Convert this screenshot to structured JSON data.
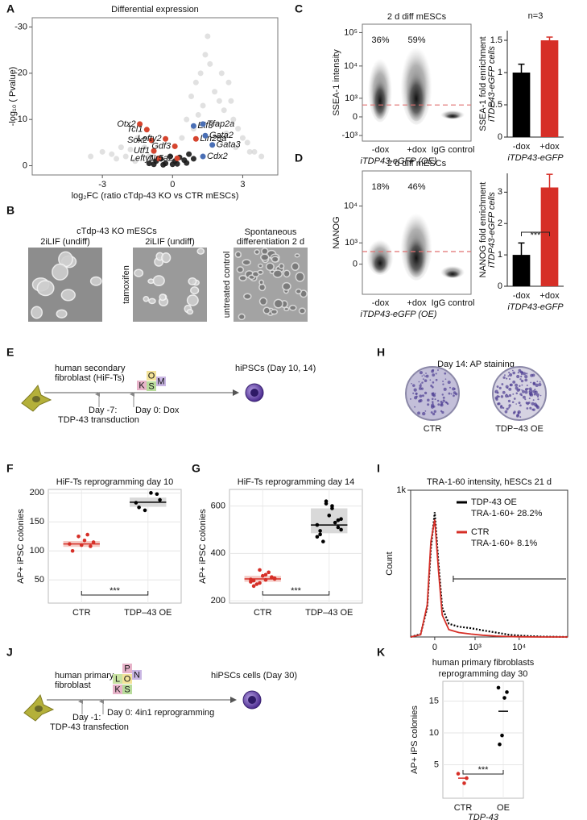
{
  "panel_labels": [
    "A",
    "B",
    "C",
    "D",
    "E",
    "F",
    "G",
    "H",
    "I",
    "J",
    "K"
  ],
  "chart_data": [
    {
      "type": "volcano",
      "title": "Differential expression",
      "y_label": "-log₁₀ ( Pvalue)",
      "x_label": "log₂FC (ratio cTdp-43 KO vs CTR mESCs)",
      "xlim": [
        -6,
        4.5
      ],
      "ylim": [
        2,
        -32
      ],
      "xticks": [
        -3,
        0,
        3
      ],
      "yticks": [
        -30,
        -20,
        -10,
        0
      ],
      "series": [
        {
          "color": "#c4c4c4",
          "x": [
            -3.5,
            -3,
            -2.6,
            -2.2,
            -2,
            -1.8,
            -1.5,
            -1.2,
            -1,
            -0.8,
            -0.5,
            0.4,
            0.6,
            0.8,
            1,
            1.2,
            1.4,
            1.6,
            1.8,
            2,
            2.2,
            2.4,
            2.6,
            2.8,
            3,
            3.2,
            3.5,
            3.8,
            1.5,
            2.1,
            2.5,
            1.1,
            0.9,
            2.7,
            3.3,
            -2.4,
            -1.6,
            1.3,
            1.9,
            2.3
          ],
          "y": [
            -2,
            -3,
            -2.5,
            -4,
            -2,
            -3.5,
            -6,
            -4,
            -2,
            -3,
            -1.5,
            -6,
            -10,
            -15,
            -18,
            -20,
            -24,
            -22,
            -16,
            -14,
            -12,
            -18,
            -10,
            -8,
            -6,
            -5,
            -3,
            -2,
            -28,
            -20,
            -14,
            -11,
            -8,
            -4,
            -3,
            -1.5,
            -1,
            -13,
            -9,
            -7
          ]
        },
        {
          "color": "#1a1a1a",
          "x": [
            -1,
            -0.7,
            -0.5,
            -0.3,
            -0.1,
            0,
            0.1,
            0.3,
            0.5,
            0.7,
            0.9,
            -0.4,
            0.2,
            0.6,
            -0.8
          ],
          "y": [
            -0.5,
            -1,
            -1.5,
            -0.5,
            -2,
            -0.3,
            -1,
            -1.8,
            -1.2,
            -2.5,
            -1.5,
            -0.2,
            -0.4,
            -0.6,
            -0.3
          ]
        }
      ],
      "genes": [
        {
          "label": "Otx2",
          "x": -1.4,
          "y": -9,
          "color": "#d6452f"
        },
        {
          "label": "Tcl1",
          "x": -1.1,
          "y": -7.8,
          "color": "#d6452f"
        },
        {
          "label": "Sox2",
          "x": -0.9,
          "y": -5.5,
          "color": "#d6452f"
        },
        {
          "label": "Lefty2",
          "x": -0.3,
          "y": -5.8,
          "color": "#d6452f"
        },
        {
          "label": "Utf1",
          "x": -0.8,
          "y": -3.2,
          "color": "#d6452f"
        },
        {
          "label": "Gdf3",
          "x": 0.1,
          "y": -4.2,
          "color": "#d6452f"
        },
        {
          "label": "Lefty1",
          "x": -0.6,
          "y": -1.6,
          "color": "#d6452f"
        },
        {
          "label": "Nr5a2",
          "x": 0.2,
          "y": -1.6,
          "color": "#d6452f"
        },
        {
          "label": "Lin28a",
          "x": 1.0,
          "y": -5.8,
          "color": "#d6452f"
        },
        {
          "label": "Elf3",
          "x": 0.9,
          "y": -8.6,
          "color": "#4a6fb5"
        },
        {
          "label": "Tfap2a",
          "x": 1.3,
          "y": -9,
          "color": "#4a6fb5"
        },
        {
          "label": "Gata2",
          "x": 1.4,
          "y": -6.5,
          "color": "#4a6fb5"
        },
        {
          "label": "Gata3",
          "x": 1.7,
          "y": -4.5,
          "color": "#4a6fb5"
        },
        {
          "label": "Cdx2",
          "x": 1.3,
          "y": -2,
          "color": "#4a6fb5"
        }
      ]
    },
    {
      "type": "flow_density",
      "title": "2 d diff mESCs",
      "y_label": "SSEA-1 intensity",
      "x_label": "iTDP43-eGFP (OE)",
      "categories": [
        "-dox",
        "+dox",
        "IgG control"
      ],
      "annotations": [
        "36%",
        "59%"
      ],
      "yscale": "asinh",
      "asinh_cofactor": 600,
      "ylim": [
        -1536,
        178800
      ],
      "yticks": [
        {
          "value": 100000,
          "label": "10⁵"
        },
        {
          "value": 10000,
          "label": "10⁴"
        },
        {
          "value": 1000,
          "label": "10³"
        },
        0,
        {
          "value": -1000,
          "label": "-10³"
        }
      ],
      "threshold": 550,
      "threshold_color": "#e07070"
    },
    {
      "type": "bar",
      "title": "n=3",
      "y_label": [
        "SSEA-1 fold enrichment",
        "iTDP43-eGFP cells"
      ],
      "x_label": "iTDP43-eGFP",
      "categories": [
        "-dox",
        "+dox"
      ],
      "values": [
        1.0,
        1.5
      ],
      "errors": [
        0.13,
        0.05
      ],
      "colors": [
        "#000000",
        "#d62f27"
      ],
      "ylim": [
        0,
        1.65
      ],
      "yticks": [
        0,
        0.5,
        1,
        1.5
      ]
    },
    {
      "type": "flow_density",
      "title": "2 d diff mESCs",
      "y_label": "NANOG",
      "x_label": "iTDP43-eGFP (OE)",
      "categories": [
        "-dox",
        "+dox",
        "IgG control"
      ],
      "annotations": [
        "18%",
        "46%"
      ],
      "yscale": "asinh",
      "asinh_cofactor": 600,
      "ylim": [
        -1800,
        83000
      ],
      "yticks": [
        {
          "value": 10000,
          "label": "10⁴"
        },
        {
          "value": 1000,
          "label": "10³"
        },
        0
      ],
      "threshold": 500,
      "threshold_color": "#e07070"
    },
    {
      "type": "bar",
      "y_label": [
        "NANOG fold enrichment",
        "iTDP43-eGFP cells"
      ],
      "x_label": "iTDP43-eGFP",
      "categories": [
        "-dox",
        "+dox"
      ],
      "values": [
        1.0,
        3.15
      ],
      "errors": [
        0.38,
        0.42
      ],
      "colors": [
        "#000000",
        "#d62f27"
      ],
      "ylim": [
        0,
        3.6
      ],
      "yticks": [
        0,
        1,
        2,
        3
      ],
      "annotation": "***"
    },
    {
      "type": "box",
      "title": "HiF-Ts reprogramming day 10",
      "y_label": "AP+ iPSC colonies",
      "categories": [
        "CTR",
        "TDP–43 OE"
      ],
      "points": [
        [
          112,
          108,
          118,
          125,
          100,
          115,
          128,
          110
        ],
        [
          183,
          198,
          200,
          170,
          175,
          188
        ]
      ],
      "boxes": [
        {
          "q1": 107,
          "median": 112,
          "q3": 117
        },
        {
          "q1": 176,
          "median": 184,
          "q3": 192
        }
      ],
      "box_colors": [
        "#f4c9c4",
        "#d9d9d9"
      ],
      "median_colors": [
        "#d62f27",
        "#000000"
      ],
      "point_colors": [
        "#d62f27",
        "#000000"
      ],
      "ylim": [
        10,
        206
      ],
      "yticks": [
        50,
        100,
        150,
        200
      ],
      "annotation": "***",
      "grid": true
    },
    {
      "type": "box",
      "title": "HiF-Ts reprogramming day 14",
      "y_label": "AP+ iPSC colonies",
      "categories": [
        "CTR",
        "TDP–43 OE"
      ],
      "points": [
        [
          290,
          300,
          310,
          275,
          285,
          295,
          320,
          305,
          270,
          280,
          298,
          288,
          330,
          262,
          292
        ],
        [
          520,
          540,
          600,
          610,
          480,
          500,
          530,
          560,
          450,
          470,
          510,
          590,
          620,
          495,
          545
        ]
      ],
      "boxes": [
        {
          "q1": 280,
          "median": 292,
          "q3": 305
        },
        {
          "q1": 485,
          "median": 520,
          "q3": 590
        }
      ],
      "box_colors": [
        "#f4c9c4",
        "#d9d9d9"
      ],
      "median_colors": [
        "#d62f27",
        "#000000"
      ],
      "point_colors": [
        "#d62f27",
        "#000000"
      ],
      "ylim": [
        190,
        670
      ],
      "yticks": [
        200,
        400,
        600
      ],
      "annotation": "***",
      "grid": true
    },
    {
      "type": "line",
      "title": "TRA-1-60 intensity, hESCs 21 d",
      "y_label": "Count",
      "xscale": "asinh",
      "asinh_cofactor": 250,
      "xlim": [
        -400,
        124000
      ],
      "ylim": [
        0,
        1000
      ],
      "xticks": [
        0,
        {
          "value": 1000,
          "label": "10³"
        },
        {
          "value": 10000,
          "label": "10⁴"
        }
      ],
      "yticks": [
        {
          "value": 1000,
          "label": "1k"
        }
      ],
      "x": [
        -400,
        -200,
        -100,
        -50,
        0,
        50,
        100,
        200,
        400,
        800,
        1500,
        3000,
        6000,
        12000,
        30000,
        124000
      ],
      "series": [
        {
          "name": "TDP-43 OE",
          "color": "#000000",
          "dash": true,
          "note": "TRA-1-60+  28.2%",
          "values": [
            0,
            20,
            200,
            600,
            850,
            500,
            200,
            90,
            70,
            60,
            45,
            30,
            15,
            8,
            3,
            0
          ]
        },
        {
          "name": "CTR",
          "color": "#d62f27",
          "dash": false,
          "note": "TRA-1-60+  8.1%",
          "values": [
            0,
            15,
            220,
            650,
            800,
            450,
            150,
            50,
            30,
            20,
            12,
            6,
            3,
            1,
            0,
            0
          ]
        }
      ],
      "gate": 280
    },
    {
      "type": "dot",
      "title": [
        "human primary fibroblasts",
        "reprogramming day 30"
      ],
      "y_label": "AP+ iPS colonies",
      "x_label": "TDP-43",
      "categories": [
        "CTR",
        "OE"
      ],
      "points": [
        [
          3.6,
          2.9,
          2.1
        ],
        [
          17.1,
          16.4,
          15.5,
          9.6,
          8.2
        ]
      ],
      "means": [
        2.9,
        13.4
      ],
      "colors": [
        "#d62f27",
        "#000000"
      ],
      "ylim": [
        -0.25,
        18.1
      ],
      "yticks": [
        5,
        10,
        15
      ],
      "annotation": "***",
      "grid": true
    }
  ],
  "micrographs": {
    "title": "cTdp-43 KO mESCs",
    "columns": [
      {
        "label": [
          "2iLIF (undiff)"
        ]
      },
      {
        "label": [
          "2iLIF (undiff)"
        ],
        "side": "tamoxifen"
      },
      {
        "label": [
          "Spontaneous",
          "differentiation 2 d"
        ],
        "side": "untreated control"
      }
    ]
  },
  "scheme_e": {
    "start": [
      "human secondary",
      "fibroblast (HiF-Ts)"
    ],
    "step1": [
      "Day -7:",
      "TDP-43 transduction"
    ],
    "step2": "Day 0: Dox",
    "factors": [
      "K",
      "O",
      "S",
      "M"
    ],
    "end": "hiPSCs (Day 10, 14)"
  },
  "scheme_j": {
    "start": [
      "human primary",
      "fibroblast"
    ],
    "step1": [
      "Day -1:",
      "TDP-43 transfection"
    ],
    "step2": "Day 0: 4in1 reprogramming",
    "factors": [
      "L",
      "P",
      "O",
      "N",
      "K",
      "S"
    ],
    "end": "hiPSCs cells (Day 30)"
  },
  "ap_staining": {
    "title": "Day 14: AP staining",
    "dishes": [
      "CTR",
      "TDP−43 OE"
    ]
  }
}
